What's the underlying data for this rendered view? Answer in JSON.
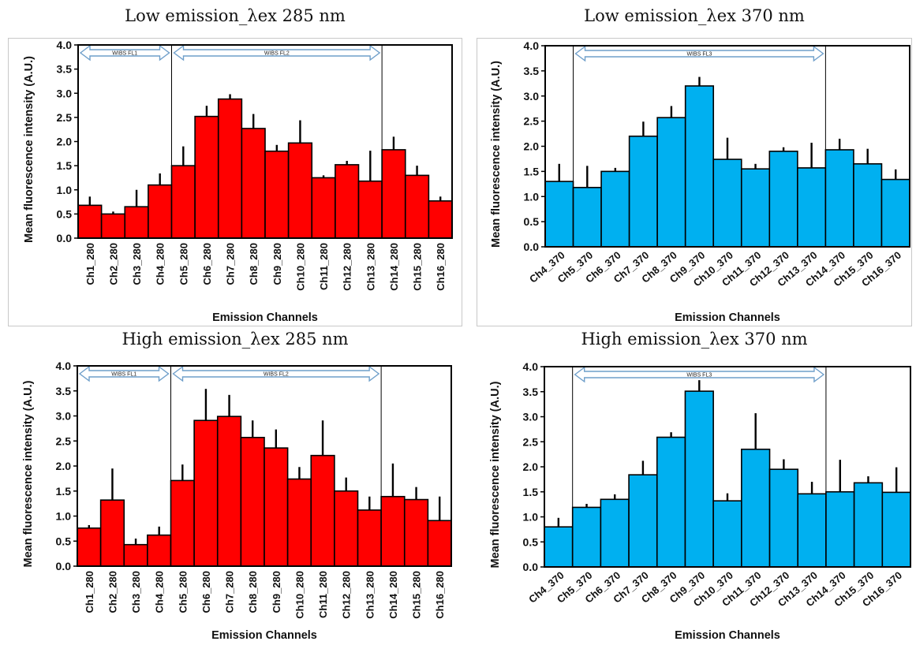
{
  "colors": {
    "red_bar": "#ff0000",
    "blue_bar": "#00b0f0",
    "arrow": "#6f9fca",
    "error": "#000000"
  },
  "chart_data": [
    {
      "type": "bar",
      "title": "Low emission_λex 285 nm",
      "xlabel": "Emission Channels",
      "ylabel": "Mean fluorescence intensity (A.U.)",
      "ylim": [
        0,
        4
      ],
      "yticks": [
        "0.0",
        "0.5",
        "1.0",
        "1.5",
        "2.0",
        "2.5",
        "3.0",
        "3.5",
        "4.0"
      ],
      "grid": false,
      "categories": [
        "Ch1_280",
        "Ch2_280",
        "Ch3_280",
        "Ch4_280",
        "Ch5_280",
        "Ch6_280",
        "Ch7_280",
        "Ch8_280",
        "Ch9_280",
        "Ch10_280",
        "Ch11_280",
        "Ch12_280",
        "Ch13_280",
        "Ch14_280",
        "Ch15_280",
        "Ch16_280"
      ],
      "values": [
        0.68,
        0.5,
        0.65,
        1.1,
        1.5,
        2.52,
        2.88,
        2.27,
        1.8,
        1.97,
        1.25,
        1.52,
        1.18,
        1.83,
        1.3,
        0.77
      ],
      "errors": [
        0.18,
        0.05,
        0.35,
        0.24,
        0.4,
        0.22,
        0.1,
        0.3,
        0.13,
        0.47,
        0.05,
        0.08,
        0.63,
        0.27,
        0.2,
        0.09
      ],
      "color": "#ff0000",
      "regions": [
        {
          "label": "WIBS FL1",
          "from": 0,
          "to": 4
        },
        {
          "label": "WIBS FL2",
          "from": 4,
          "to": 13
        }
      ]
    },
    {
      "type": "bar",
      "title": "Low emission_λex 370 nm",
      "xlabel": "Emission Channels",
      "ylabel": "Mean fluorescence intensity (A.U.)",
      "ylim": [
        0,
        4
      ],
      "yticks": [
        "0.0",
        "0.5",
        "1.0",
        "1.5",
        "2.0",
        "2.5",
        "3.0",
        "3.5",
        "4.0"
      ],
      "grid": false,
      "categories": [
        "Ch4_370",
        "Ch5_370",
        "Ch6_370",
        "Ch7_370",
        "Ch8_370",
        "Ch9_370",
        "Ch10_370",
        "Ch11_370",
        "Ch12_370",
        "Ch13_370",
        "Ch14_370",
        "Ch15_370",
        "Ch16_370"
      ],
      "values": [
        1.3,
        1.18,
        1.5,
        2.2,
        2.57,
        3.2,
        1.74,
        1.55,
        1.9,
        1.57,
        1.93,
        1.65,
        1.34
      ],
      "errors": [
        0.35,
        0.43,
        0.07,
        0.29,
        0.23,
        0.18,
        0.43,
        0.1,
        0.08,
        0.5,
        0.22,
        0.3,
        0.2
      ],
      "color": "#00b0f0",
      "regions": [
        {
          "label": "WIBS FL3",
          "from": 1,
          "to": 10
        }
      ]
    },
    {
      "type": "bar",
      "title": "High emission_λex 285 nm",
      "xlabel": "Emission Channels",
      "ylabel": "Mean fluorescence intensity (A.U.)",
      "ylim": [
        0,
        4
      ],
      "yticks": [
        "0.0",
        "0.5",
        "1.0",
        "1.5",
        "2.0",
        "2.5",
        "3.0",
        "3.5",
        "4.0"
      ],
      "grid": false,
      "categories": [
        "Ch1_280",
        "Ch2_280",
        "Ch3_280",
        "Ch4_280",
        "Ch5_280",
        "Ch6_280",
        "Ch7_280",
        "Ch8_280",
        "Ch9_280",
        "Ch10_280",
        "Ch11_280",
        "Ch12_280",
        "Ch13_280",
        "Ch14_280",
        "Ch15_280",
        "Ch16_280"
      ],
      "values": [
        0.76,
        1.32,
        0.43,
        0.62,
        1.71,
        2.91,
        2.99,
        2.57,
        2.36,
        1.74,
        2.21,
        1.5,
        1.12,
        1.39,
        1.33,
        0.91
      ],
      "errors": [
        0.06,
        0.63,
        0.12,
        0.17,
        0.32,
        0.63,
        0.43,
        0.34,
        0.37,
        0.24,
        0.7,
        0.27,
        0.27,
        0.66,
        0.25,
        0.48
      ],
      "color": "#ff0000",
      "regions": [
        {
          "label": "WIBS FL1",
          "from": 0,
          "to": 4
        },
        {
          "label": "WIBS FL2",
          "from": 4,
          "to": 13
        }
      ]
    },
    {
      "type": "bar",
      "title": "High emission_λex 370 nm",
      "xlabel": "Emission Channels",
      "ylabel": "Mean fluorescence intensity (A.U.)",
      "ylim": [
        0,
        4
      ],
      "yticks": [
        "0.0",
        "0.5",
        "1.0",
        "1.5",
        "2.0",
        "2.5",
        "3.0",
        "3.5",
        "4.0"
      ],
      "grid": false,
      "categories": [
        "Ch4_370",
        "Ch5_370",
        "Ch6_370",
        "Ch7_370",
        "Ch8_370",
        "Ch9_370",
        "Ch10_370",
        "Ch11_370",
        "Ch12_370",
        "Ch13_370",
        "Ch14_370",
        "Ch15_370",
        "Ch16_370"
      ],
      "values": [
        0.8,
        1.19,
        1.35,
        1.84,
        2.59,
        3.51,
        1.32,
        2.35,
        1.95,
        1.46,
        1.5,
        1.68,
        1.49
      ],
      "errors": [
        0.18,
        0.07,
        0.1,
        0.28,
        0.1,
        0.22,
        0.15,
        0.72,
        0.2,
        0.24,
        0.64,
        0.13,
        0.5
      ],
      "color": "#00b0f0",
      "regions": [
        {
          "label": "WIBS FL3",
          "from": 1,
          "to": 10
        }
      ]
    }
  ]
}
